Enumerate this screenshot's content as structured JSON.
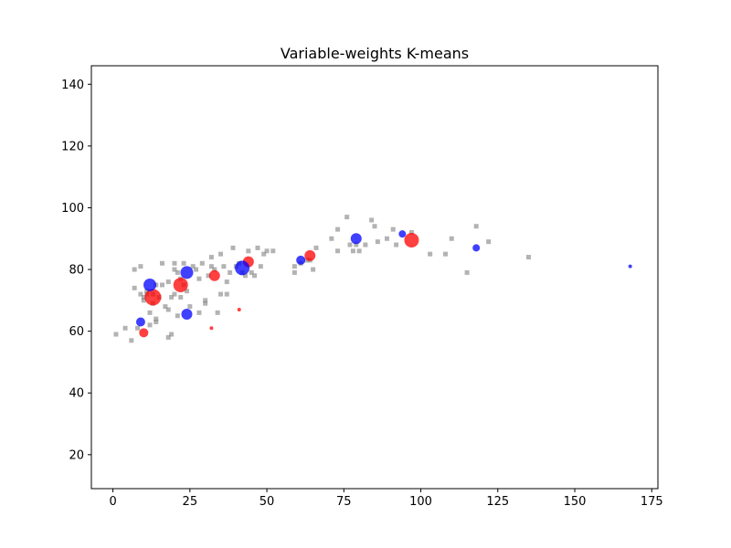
{
  "chart_data": {
    "type": "scatter",
    "title": "Variable-weights K-means",
    "xlabel": "",
    "ylabel": "",
    "xlim": [
      -7,
      177
    ],
    "ylim": [
      9,
      146
    ],
    "xticks": [
      0,
      25,
      50,
      75,
      100,
      125,
      150,
      175
    ],
    "yticks": [
      20,
      40,
      60,
      80,
      100,
      120,
      140
    ],
    "xtick_labels": [
      "0",
      "25",
      "50",
      "75",
      "100",
      "125",
      "150",
      "175"
    ],
    "ytick_labels": [
      "20",
      "40",
      "60",
      "80",
      "100",
      "120",
      "140"
    ],
    "grid": false,
    "legend": "none",
    "colors": {
      "data_points": "#808080",
      "red_centers": "#ff0000",
      "blue_centers": "#0000ff"
    },
    "series": [
      {
        "marker": "square",
        "color": "#808080",
        "points": [
          [
            1,
            59
          ],
          [
            4,
            61
          ],
          [
            6,
            57
          ],
          [
            7,
            80
          ],
          [
            8,
            61
          ],
          [
            9,
            81
          ],
          [
            10,
            71
          ],
          [
            11,
            72
          ],
          [
            11,
            73
          ],
          [
            12,
            66
          ],
          [
            12,
            62
          ],
          [
            13,
            69
          ],
          [
            14,
            64
          ],
          [
            14,
            63
          ],
          [
            15,
            71
          ],
          [
            16,
            82
          ],
          [
            17,
            68
          ],
          [
            18,
            67
          ],
          [
            18,
            58
          ],
          [
            19,
            59
          ],
          [
            20,
            72
          ],
          [
            20,
            80
          ],
          [
            20,
            82
          ],
          [
            21,
            65
          ],
          [
            22,
            77
          ],
          [
            22,
            71
          ],
          [
            23,
            75
          ],
          [
            23,
            82
          ],
          [
            24,
            73
          ],
          [
            25,
            68
          ],
          [
            26,
            81
          ],
          [
            27,
            80
          ],
          [
            28,
            66
          ],
          [
            28,
            77
          ],
          [
            29,
            82
          ],
          [
            30,
            69
          ],
          [
            30,
            70
          ],
          [
            31,
            78
          ],
          [
            32,
            84
          ],
          [
            32,
            81
          ],
          [
            33,
            80
          ],
          [
            34,
            66
          ],
          [
            35,
            85
          ],
          [
            35,
            72
          ],
          [
            36,
            81
          ],
          [
            37,
            72
          ],
          [
            37,
            76
          ],
          [
            38,
            79
          ],
          [
            39,
            87
          ],
          [
            40,
            81
          ],
          [
            41,
            82
          ],
          [
            42,
            79
          ],
          [
            43,
            78
          ],
          [
            44,
            86
          ],
          [
            45,
            79
          ],
          [
            46,
            78
          ],
          [
            47,
            87
          ],
          [
            48,
            81
          ],
          [
            49,
            85
          ],
          [
            50,
            86
          ],
          [
            52,
            86
          ],
          [
            59,
            81
          ],
          [
            59,
            79
          ],
          [
            61,
            82
          ],
          [
            63,
            83
          ],
          [
            64,
            83
          ],
          [
            65,
            80
          ],
          [
            66,
            87
          ],
          [
            71,
            90
          ],
          [
            73,
            93
          ],
          [
            73,
            86
          ],
          [
            76,
            97
          ],
          [
            77,
            88
          ],
          [
            78,
            86
          ],
          [
            79,
            88
          ],
          [
            80,
            86
          ],
          [
            82,
            88
          ],
          [
            84,
            96
          ],
          [
            85,
            94
          ],
          [
            86,
            89
          ],
          [
            89,
            90
          ],
          [
            91,
            93
          ],
          [
            92,
            88
          ],
          [
            97,
            92
          ],
          [
            103,
            85
          ],
          [
            108,
            85
          ],
          [
            110,
            90
          ],
          [
            115,
            79
          ],
          [
            118,
            94
          ],
          [
            122,
            89
          ],
          [
            135,
            84
          ],
          [
            7,
            74
          ],
          [
            9,
            72
          ],
          [
            10,
            70
          ],
          [
            13,
            72
          ],
          [
            14,
            75
          ],
          [
            16,
            75
          ],
          [
            18,
            76
          ],
          [
            19,
            71
          ],
          [
            21,
            79
          ]
        ]
      },
      {
        "marker": "circle",
        "color": "#ff0000",
        "points": [
          [
            10,
            59.5,
            5
          ],
          [
            13,
            71,
            9
          ],
          [
            22,
            75,
            8
          ],
          [
            33,
            78,
            6
          ],
          [
            32,
            61,
            2
          ],
          [
            41,
            67,
            2
          ],
          [
            44,
            82.5,
            6
          ],
          [
            64,
            84.5,
            6
          ],
          [
            97,
            89.5,
            8
          ]
        ]
      },
      {
        "marker": "circle",
        "color": "#0000ff",
        "points": [
          [
            9,
            63,
            5
          ],
          [
            12,
            75,
            7
          ],
          [
            24,
            79,
            7
          ],
          [
            24,
            65.5,
            6
          ],
          [
            42,
            80.5,
            8
          ],
          [
            61,
            83,
            5
          ],
          [
            79,
            90,
            6
          ],
          [
            94,
            91.5,
            4
          ],
          [
            118,
            87,
            4
          ],
          [
            168,
            81,
            2
          ]
        ]
      }
    ]
  }
}
